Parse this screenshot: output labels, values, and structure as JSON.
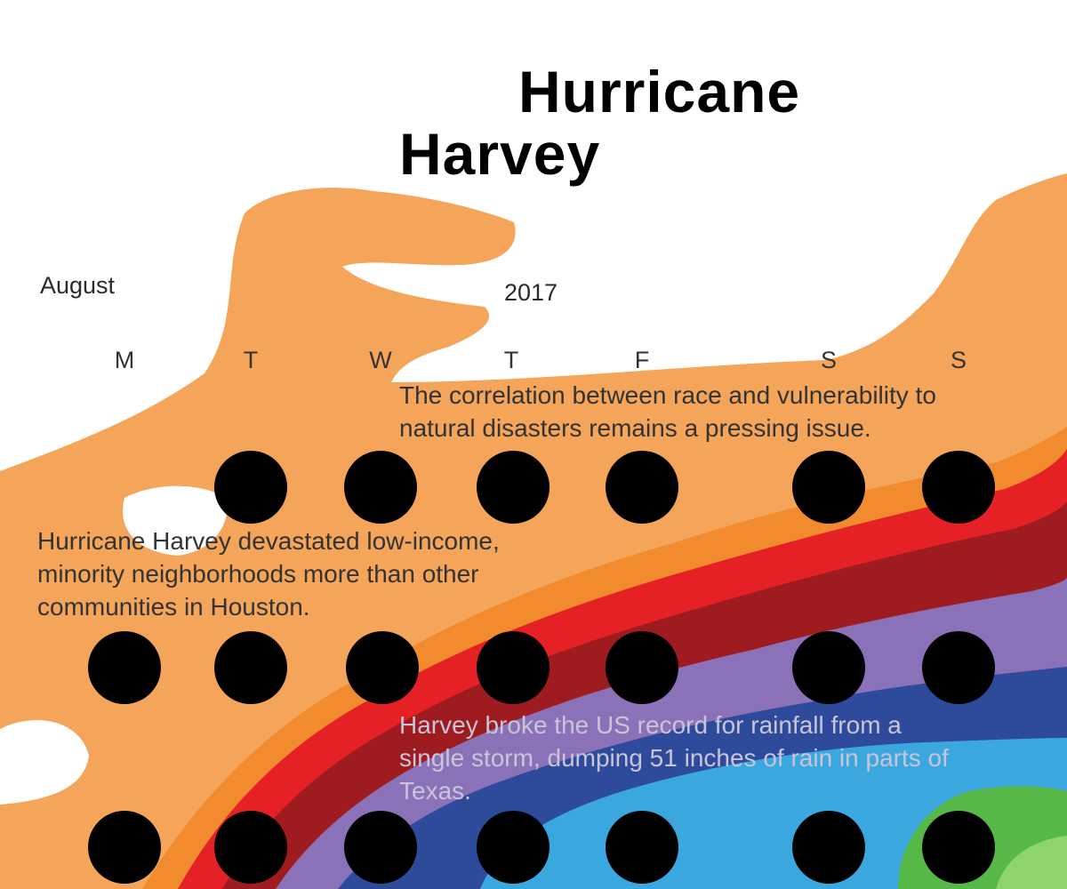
{
  "title": {
    "line1": "Hurricane",
    "line2": "Harvey"
  },
  "calendar": {
    "month": "August",
    "year": "2017",
    "weekdays": [
      "M",
      "T",
      "W",
      "T",
      "F",
      "S",
      "S"
    ]
  },
  "notes": {
    "n1": "The correlation between race and vulnerability to natural disasters remains a pressing issue.",
    "n2": "Hurricane Harvey devastated low-income, minority neighborhoods more than other communities in Houston.",
    "n3": "Harvey broke the US record for rainfall from a single storm, dumping 51 inches of rain in parts of Texas."
  },
  "colors": {
    "light_orange": "#f4a55a",
    "orange": "#f28a2e",
    "red": "#e52126",
    "dark_red": "#9e1b1f",
    "purple": "#8b72b8",
    "navy": "#2e4a9a",
    "sky_blue": "#3aa8df",
    "green": "#55b847",
    "dot": "#000000"
  }
}
